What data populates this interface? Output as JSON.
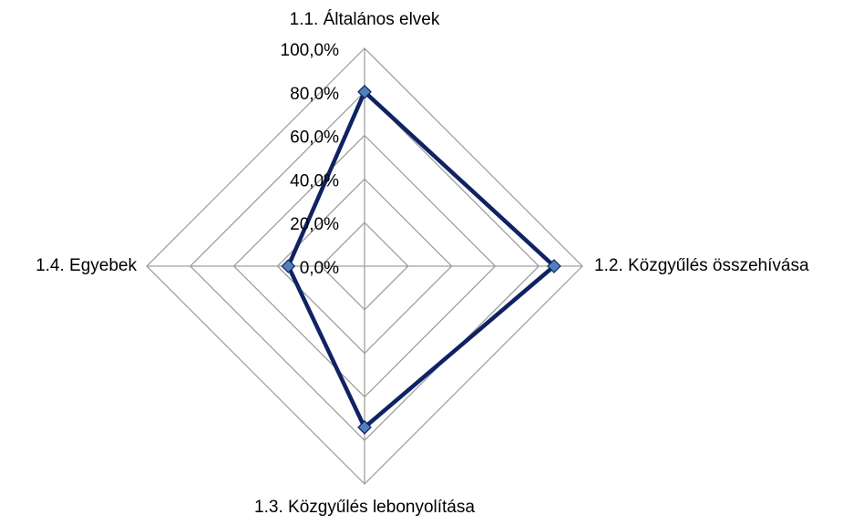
{
  "chart_data": {
    "type": "radar",
    "categories": [
      "1.1. Általános elvek",
      "1.2. Közgyűlés összehívása",
      "1.3. Közgyűlés lebonyolítása",
      "1.4. Egyebek"
    ],
    "values": [
      80,
      87,
      74,
      35
    ],
    "color": "#0f2263",
    "marker_color": "#4f81bd",
    "rlim": [
      0,
      100
    ],
    "rticks": [
      {
        "value": 0,
        "label": "0,0%"
      },
      {
        "value": 20,
        "label": "20,0%"
      },
      {
        "value": 40,
        "label": "40,0%"
      },
      {
        "value": 60,
        "label": "60,0%"
      },
      {
        "value": 80,
        "label": "80,0%"
      },
      {
        "value": 100,
        "label": "100,0%"
      }
    ],
    "grid": true
  }
}
